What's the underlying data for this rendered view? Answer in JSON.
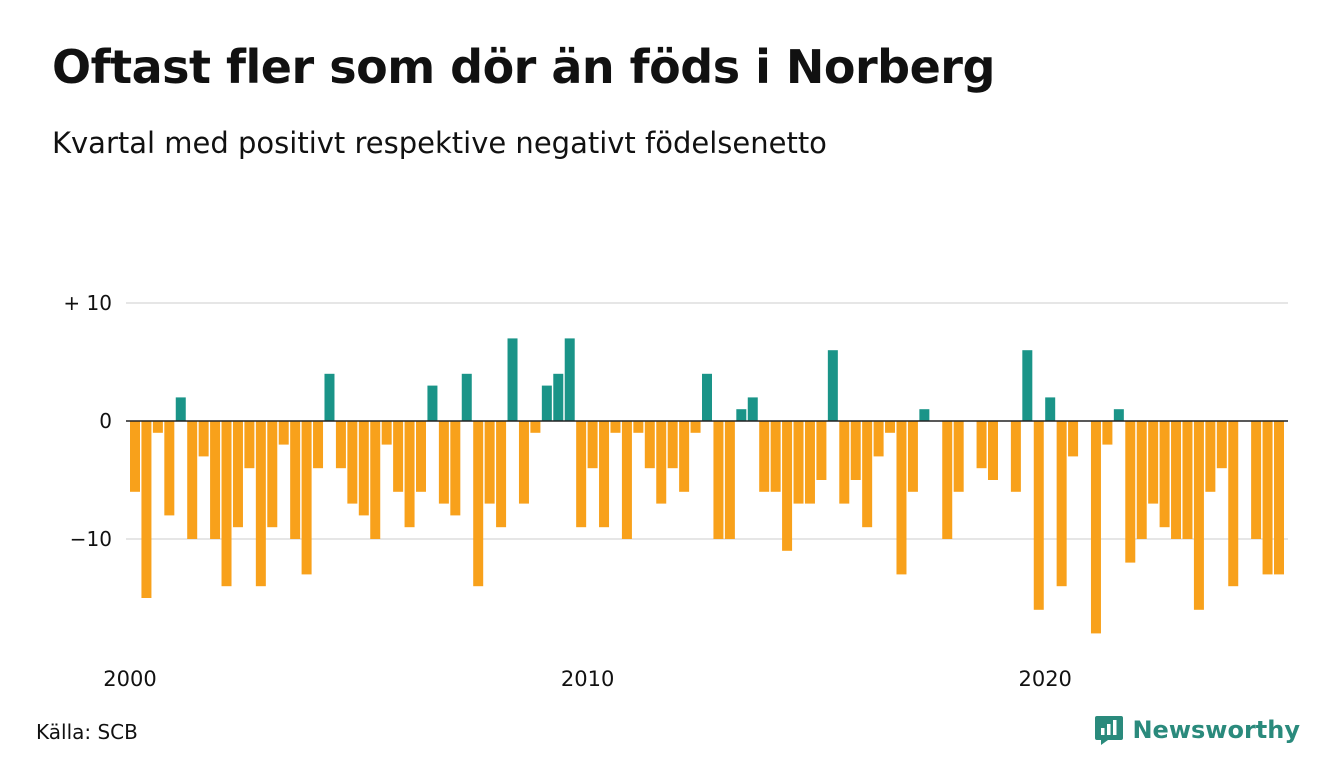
{
  "header": {
    "title": "Oftast fler som dör än föds i Norberg",
    "subtitle": "Kvartal med positivt respektive negativt födelsenetto"
  },
  "footer": {
    "source": "Källa: SCB",
    "brand": "Newsworthy"
  },
  "colors": {
    "positive": "#1a9488",
    "negative": "#f8a11b",
    "grid": "#dddddd",
    "axis": "#222222",
    "brand": "#2a8a7c"
  },
  "chart_data": {
    "type": "bar",
    "x_start": "2000",
    "x_end": "2024",
    "x_ticks": [
      "2000",
      "2010",
      "2020"
    ],
    "y_ticks": [
      {
        "value": 10,
        "label": "+ 10"
      },
      {
        "value": 0,
        "label": "0"
      },
      {
        "value": -10,
        "label": "−10"
      }
    ],
    "ylim": [
      -19,
      10
    ],
    "grid": true,
    "values": [
      -6,
      -15,
      -1,
      -8,
      2,
      -10,
      -3,
      -10,
      -14,
      -9,
      -4,
      -14,
      -9,
      -2,
      -10,
      -13,
      -4,
      4,
      -4,
      -7,
      -8,
      -10,
      -2,
      -6,
      -9,
      -6,
      3,
      -7,
      -8,
      4,
      -14,
      -7,
      -9,
      7,
      -7,
      -1,
      3,
      4,
      7,
      -9,
      -4,
      -9,
      -1,
      -10,
      -1,
      -4,
      -7,
      -4,
      -6,
      -1,
      4,
      -10,
      -10,
      1,
      2,
      -6,
      -6,
      -11,
      -7,
      -7,
      -5,
      6,
      -7,
      -5,
      -9,
      -3,
      -1,
      -13,
      -6,
      1,
      0,
      -10,
      -6,
      0,
      -4,
      -5,
      0,
      -6,
      6,
      -16,
      2,
      -14,
      -3,
      0,
      -18,
      -2,
      1,
      -12,
      -10,
      -7,
      -9,
      -10,
      -10,
      -16,
      -6,
      -4,
      -14,
      0,
      -10,
      -13,
      -13
    ]
  }
}
